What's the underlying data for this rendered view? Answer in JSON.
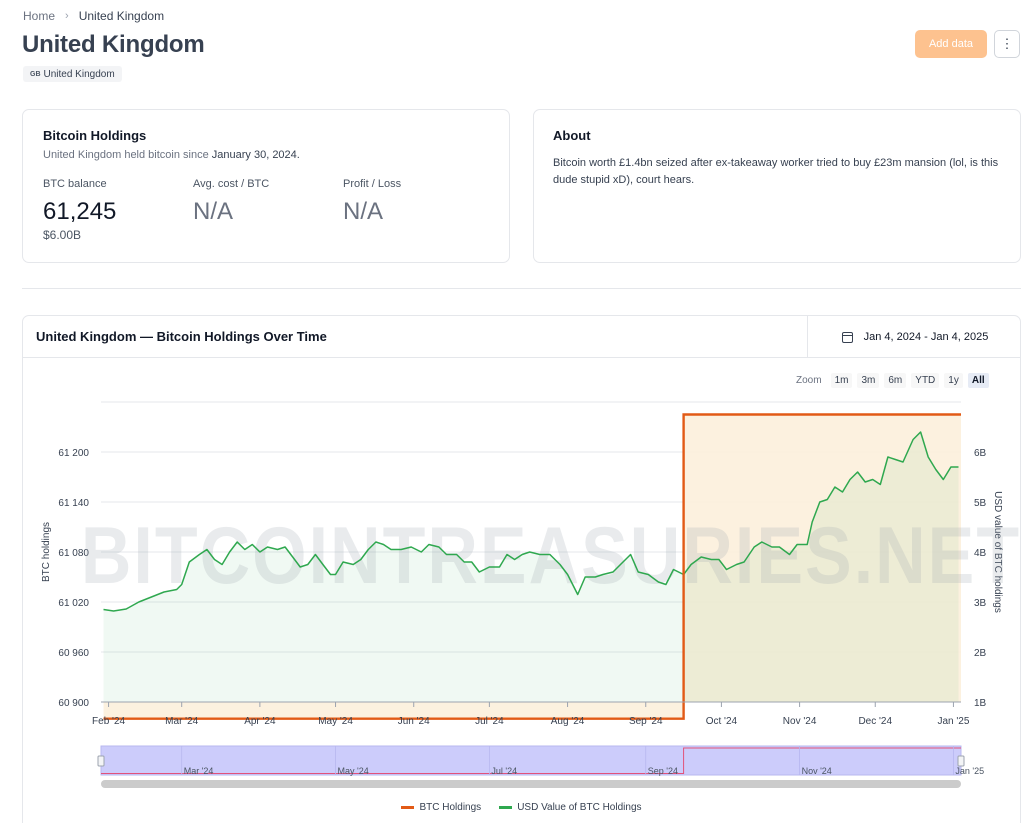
{
  "breadcrumb": {
    "home": "Home",
    "separator": "›",
    "current": "United Kingdom"
  },
  "page_title": "United Kingdom",
  "country_tag": {
    "flag_code": "GB",
    "label": "United Kingdom"
  },
  "actions": {
    "add_data": "Add data",
    "more": "⋮"
  },
  "holdings_card": {
    "title": "Bitcoin Holdings",
    "held_prefix": "United Kingdom held bitcoin since",
    "held_date": "January 30, 2024.",
    "stats": [
      {
        "label": "BTC balance",
        "value": "61,245",
        "sub": "$6.00B"
      },
      {
        "label": "Avg. cost / BTC",
        "value": "N/A"
      },
      {
        "label": "Profit / Loss",
        "value": "N/A"
      }
    ]
  },
  "about_card": {
    "title": "About",
    "text": "Bitcoin worth £1.4bn seized after ex-takeaway worker tried to buy £23m mansion (lol, is this dude stupid xD), court hears."
  },
  "chart_section": {
    "title": "United Kingdom — Bitcoin Holdings Over Time",
    "date_range": "Jan 4, 2024 - Jan 4, 2025",
    "zoom_label": "Zoom",
    "zoom_buttons": [
      "1m",
      "3m",
      "6m",
      "YTD",
      "1y",
      "All"
    ],
    "zoom_active": "All"
  },
  "chart_data": {
    "type": "line",
    "watermark": "BITCOINTREASURIES.NET",
    "x_ticks": [
      "Feb '24",
      "Mar '24",
      "Apr '24",
      "May '24",
      "Jun '24",
      "Jul '24",
      "Aug '24",
      "Sep '24",
      "Oct '24",
      "Nov '24",
      "Dec '24",
      "Jan '25"
    ],
    "navigator_ticks": [
      "Mar '24",
      "May '24",
      "Jul '24",
      "Sep '24",
      "Nov '24",
      "Jan '25"
    ],
    "y_left": {
      "label": "BTC holdings",
      "ticks": [
        "60 900",
        "60 960",
        "61 020",
        "61 080",
        "61 140",
        "61 200"
      ],
      "range": [
        60900,
        61260
      ]
    },
    "y_right": {
      "label": "USD value of BTC holdings",
      "ticks": [
        "1B",
        "2B",
        "3B",
        "4B",
        "5B",
        "6B"
      ],
      "range": [
        1,
        7
      ]
    },
    "series": [
      {
        "name": "BTC Holdings",
        "color": "#e25a16",
        "axis": "left",
        "x": [
          "2024-01-30",
          "2024-09-16",
          "2024-09-16",
          "2025-01-04"
        ],
        "values": [
          60880,
          60880,
          61245,
          61245
        ]
      },
      {
        "name": "USD Value of BTC Holdings",
        "color": "#2fa84f",
        "axis": "right",
        "x": [
          "2024-01-30",
          "2024-02-03",
          "2024-02-08",
          "2024-02-13",
          "2024-02-18",
          "2024-02-23",
          "2024-02-28",
          "2024-03-01",
          "2024-03-04",
          "2024-03-08",
          "2024-03-11",
          "2024-03-14",
          "2024-03-17",
          "2024-03-20",
          "2024-03-23",
          "2024-03-26",
          "2024-03-29",
          "2024-04-01",
          "2024-04-04",
          "2024-04-08",
          "2024-04-11",
          "2024-04-14",
          "2024-04-17",
          "2024-04-20",
          "2024-04-23",
          "2024-04-26",
          "2024-04-29",
          "2024-05-01",
          "2024-05-04",
          "2024-05-08",
          "2024-05-11",
          "2024-05-14",
          "2024-05-17",
          "2024-05-20",
          "2024-05-23",
          "2024-05-27",
          "2024-05-31",
          "2024-06-04",
          "2024-06-07",
          "2024-06-11",
          "2024-06-14",
          "2024-06-18",
          "2024-06-21",
          "2024-06-24",
          "2024-06-27",
          "2024-07-01",
          "2024-07-05",
          "2024-07-08",
          "2024-07-11",
          "2024-07-14",
          "2024-07-17",
          "2024-07-21",
          "2024-07-25",
          "2024-07-29",
          "2024-08-01",
          "2024-08-05",
          "2024-08-08",
          "2024-08-12",
          "2024-08-15",
          "2024-08-19",
          "2024-08-22",
          "2024-08-26",
          "2024-08-29",
          "2024-09-02",
          "2024-09-06",
          "2024-09-09",
          "2024-09-12",
          "2024-09-16",
          "2024-09-19",
          "2024-09-23",
          "2024-09-27",
          "2024-09-30",
          "2024-10-03",
          "2024-10-07",
          "2024-10-10",
          "2024-10-14",
          "2024-10-17",
          "2024-10-21",
          "2024-10-24",
          "2024-10-28",
          "2024-10-31",
          "2024-11-04",
          "2024-11-06",
          "2024-11-09",
          "2024-11-12",
          "2024-11-15",
          "2024-11-18",
          "2024-11-21",
          "2024-11-24",
          "2024-11-27",
          "2024-11-30",
          "2024-12-03",
          "2024-12-06",
          "2024-12-09",
          "2024-12-12",
          "2024-12-16",
          "2024-12-19",
          "2024-12-22",
          "2024-12-25",
          "2024-12-28",
          "2024-12-31",
          "2025-01-03"
        ],
        "values": [
          2.85,
          2.82,
          2.86,
          3.0,
          3.1,
          3.2,
          3.25,
          3.35,
          3.8,
          3.95,
          4.05,
          3.85,
          3.75,
          4.0,
          4.2,
          4.05,
          4.15,
          4.0,
          4.1,
          4.05,
          4.1,
          3.9,
          3.7,
          3.75,
          3.95,
          3.75,
          3.55,
          3.55,
          3.8,
          3.75,
          3.85,
          4.05,
          4.2,
          4.15,
          4.05,
          4.05,
          4.1,
          4.0,
          4.15,
          4.1,
          3.95,
          3.95,
          3.8,
          3.8,
          3.6,
          3.7,
          3.7,
          3.95,
          3.85,
          3.95,
          4.0,
          3.95,
          3.95,
          3.75,
          3.55,
          3.15,
          3.5,
          3.5,
          3.55,
          3.6,
          3.75,
          3.95,
          3.6,
          3.55,
          3.4,
          3.35,
          3.65,
          3.55,
          3.75,
          3.9,
          3.85,
          3.85,
          3.65,
          3.75,
          3.8,
          4.1,
          4.2,
          4.1,
          4.1,
          3.95,
          4.15,
          4.15,
          4.6,
          5.0,
          5.05,
          5.3,
          5.2,
          5.45,
          5.6,
          5.4,
          5.45,
          5.35,
          5.9,
          5.85,
          5.8,
          6.25,
          6.4,
          5.9,
          5.65,
          5.45,
          5.7,
          5.7
        ]
      }
    ]
  }
}
